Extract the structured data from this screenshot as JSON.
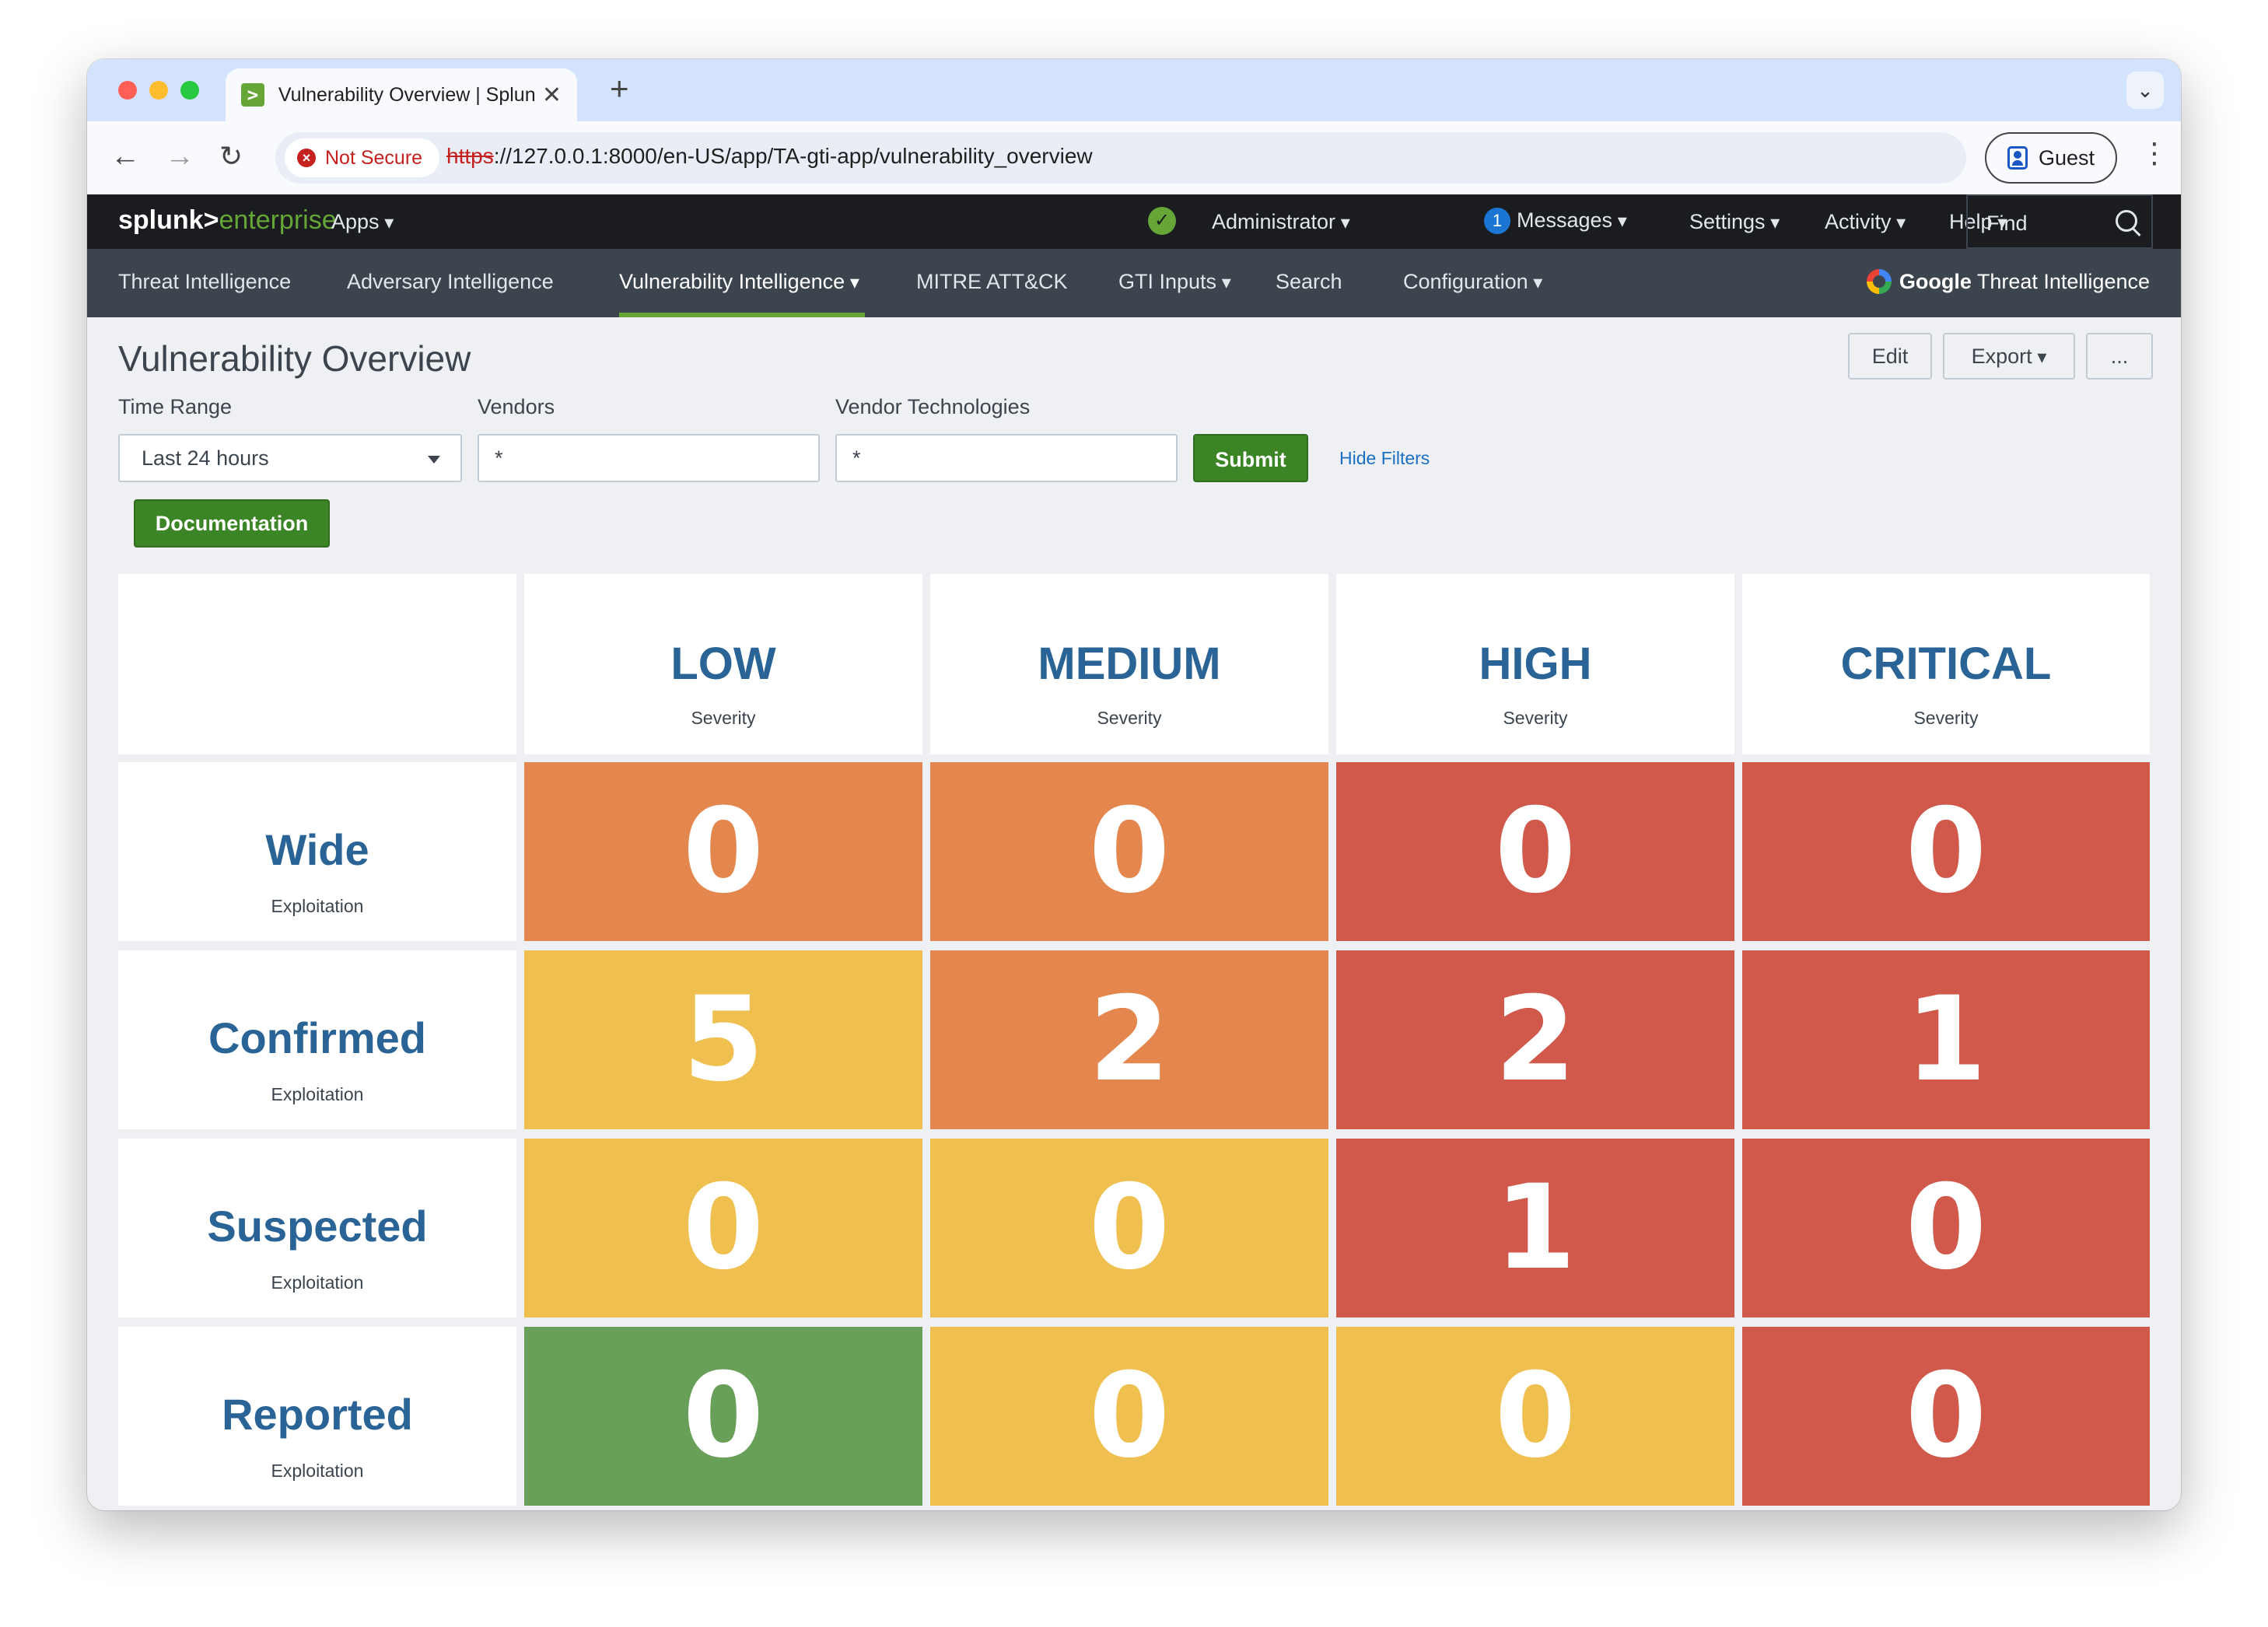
{
  "browser": {
    "tab_title": "Vulnerability Overview | Splunk",
    "security_label": "Not Secure",
    "url_scheme": "https",
    "url_rest": "://127.0.0.1:8000/en-US/app/TA-gti-app/vulnerability_overview",
    "profile_label": "Guest",
    "new_tab_symbol": "+",
    "close_symbol": "✕"
  },
  "splunk_bar": {
    "logo_primary": "splunk>",
    "logo_secondary": "enterprise",
    "apps_label": "Apps",
    "user_label": "Administrator",
    "messages_count": "1",
    "messages_label": "Messages",
    "settings_label": "Settings",
    "activity_label": "Activity",
    "help_label": "Help",
    "find_label": "Find"
  },
  "app_nav": {
    "items": [
      {
        "label": "Threat Intelligence"
      },
      {
        "label": "Adversary Intelligence"
      },
      {
        "label": "Vulnerability Intelligence"
      },
      {
        "label": "MITRE ATT&CK"
      },
      {
        "label": "GTI Inputs"
      },
      {
        "label": "Search"
      },
      {
        "label": "Configuration"
      }
    ],
    "brand_bold": "Google",
    "brand_rest": " Threat Intelligence"
  },
  "dashboard": {
    "title": "Vulnerability Overview",
    "edit_label": "Edit",
    "export_label": "Export",
    "more_label": "...",
    "filters": {
      "time_range_label": "Time Range",
      "time_range_value": "Last 24 hours",
      "vendors_label": "Vendors",
      "vendors_value": "*",
      "vendor_tech_label": "Vendor Technologies",
      "vendor_tech_value": "*",
      "submit_label": "Submit",
      "hide_filters_label": "Hide Filters"
    },
    "documentation_label": "Documentation"
  },
  "matrix": {
    "severities": [
      {
        "title": "LOW",
        "sub": "Severity"
      },
      {
        "title": "MEDIUM",
        "sub": "Severity"
      },
      {
        "title": "HIGH",
        "sub": "Severity"
      },
      {
        "title": "CRITICAL",
        "sub": "Severity"
      }
    ],
    "rows": [
      {
        "title": "Wide",
        "sub": "Exploitation",
        "values": [
          "0",
          "0",
          "0",
          "0"
        ],
        "colors": [
          "#e3874e",
          "#e3874e",
          "#d0594b",
          "#d0594b"
        ]
      },
      {
        "title": "Confirmed",
        "sub": "Exploitation",
        "values": [
          "5",
          "2",
          "2",
          "1"
        ],
        "colors": [
          "#efc050",
          "#e3874e",
          "#d0594b",
          "#d0594b"
        ]
      },
      {
        "title": "Suspected",
        "sub": "Exploitation",
        "values": [
          "0",
          "0",
          "1",
          "0"
        ],
        "colors": [
          "#efc050",
          "#efc050",
          "#d0594b",
          "#d0594b"
        ]
      },
      {
        "title": "Reported",
        "sub": "Exploitation",
        "values": [
          "0",
          "0",
          "0",
          "0"
        ],
        "colors": [
          "#68a05a",
          "#efc050",
          "#efc050",
          "#d0594b"
        ]
      }
    ]
  },
  "colors": {
    "accent_green": "#65a637",
    "header_text_blue": "#2a6496"
  }
}
